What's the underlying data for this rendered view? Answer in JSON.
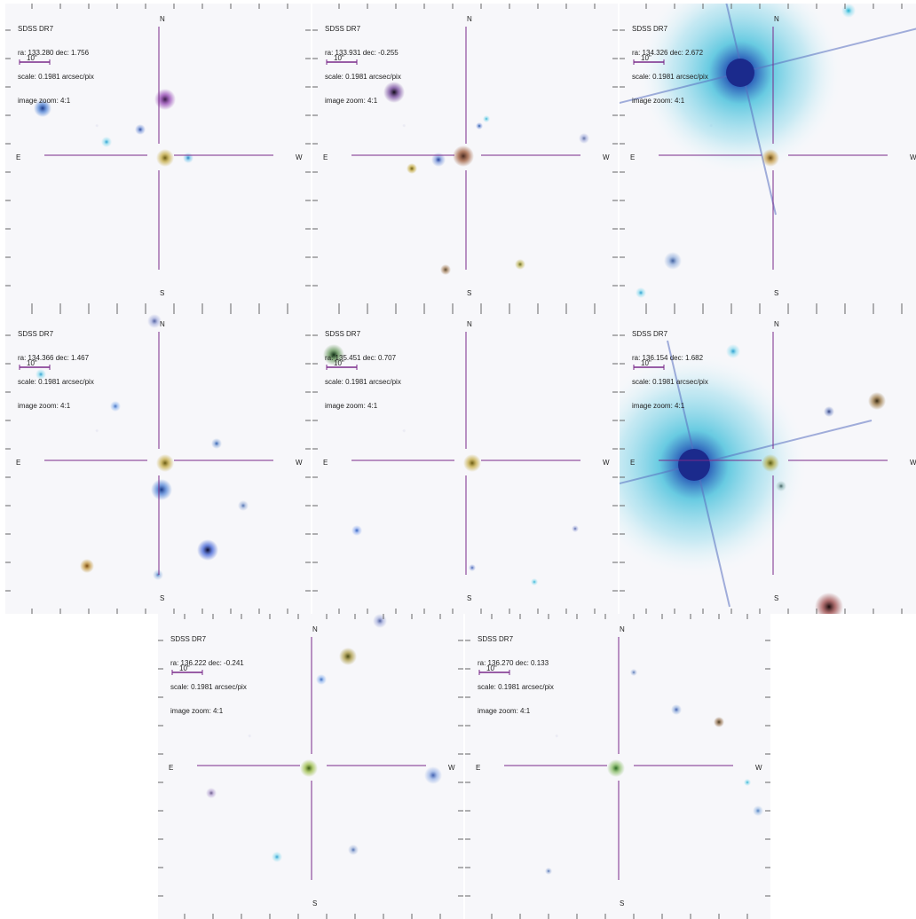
{
  "survey_label": "SDSS DR7",
  "scale_line": "scale: 0.1981 arcsec/pix",
  "zoom_line": "image zoom: 4:1",
  "scale_bar_label": "10\"",
  "compass": {
    "north": "N",
    "south": "S",
    "east": "E",
    "west": "W"
  },
  "colors": {
    "crosshair": "#7a2a8a",
    "background": "#f7f7fa",
    "bright_star_halo": "#4fc3dd",
    "bright_star_core": "#1b2a8c"
  },
  "panels": [
    {
      "coords": "ra: 133.280 dec: 1.756",
      "sources": [
        {
          "x": 180,
          "y": 108,
          "r": 6,
          "c": "#3a1a4a",
          "halo": "#9a50b8"
        },
        {
          "x": 42,
          "y": 118,
          "r": 5,
          "c": "#1a3a8a",
          "halo": "#5a8ad8"
        },
        {
          "x": 114,
          "y": 156,
          "r": 3,
          "c": "#2aa0d0",
          "halo": "#a0e0f0"
        },
        {
          "x": 152,
          "y": 142,
          "r": 3,
          "c": "#3050a0",
          "halo": "#90a8e0"
        },
        {
          "x": 206,
          "y": 174,
          "r": 3,
          "c": "#2080c0",
          "halo": "#90d0f0"
        },
        {
          "x": 180,
          "y": 174,
          "r": 5,
          "c": "#6a5a10",
          "halo": "#c8b050"
        }
      ]
    },
    {
      "coords": "ra: 133.931 dec: -0.255",
      "sources": [
        {
          "x": 92,
          "y": 100,
          "r": 6,
          "c": "#100a18",
          "halo": "#7a50a0"
        },
        {
          "x": 112,
          "y": 186,
          "r": 3,
          "c": "#6a5a10",
          "halo": "#c8b050"
        },
        {
          "x": 142,
          "y": 176,
          "r": 4,
          "c": "#2040a0",
          "halo": "#90a8e0"
        },
        {
          "x": 170,
          "y": 172,
          "r": 6,
          "c": "#4a2a20",
          "halo": "#a06040"
        },
        {
          "x": 188,
          "y": 138,
          "r": 2,
          "c": "#2050a0",
          "halo": "#90a8e0"
        },
        {
          "x": 196,
          "y": 130,
          "r": 2,
          "c": "#30b0d0",
          "halo": "#a0e0f0"
        },
        {
          "x": 150,
          "y": 300,
          "r": 3,
          "c": "#5a4a30",
          "halo": "#b09070"
        },
        {
          "x": 234,
          "y": 294,
          "r": 3,
          "c": "#6a6a20",
          "halo": "#c8c070"
        },
        {
          "x": 306,
          "y": 152,
          "r": 3,
          "c": "#6070a0",
          "halo": "#b0b8e0"
        }
      ]
    },
    {
      "coords": "ra: 134.326 dec: 2.672",
      "bright": {
        "x": 136,
        "y": 78,
        "r": 16,
        "halo": 118
      },
      "sources": [
        {
          "x": 170,
          "y": 174,
          "r": 5,
          "c": "#6a4a10",
          "halo": "#c8a050"
        },
        {
          "x": 60,
          "y": 290,
          "r": 5,
          "c": "#4060a0",
          "halo": "#a0b8e0"
        },
        {
          "x": 24,
          "y": 326,
          "r": 3,
          "c": "#2aa0d0",
          "halo": "#a0e0f0"
        },
        {
          "x": 258,
          "y": 8,
          "r": 4,
          "c": "#20b0d0",
          "halo": "#a0e0f0"
        }
      ]
    },
    {
      "coords": "ra: 134.366 dec: 1.467",
      "sources": [
        {
          "x": 180,
          "y": 174,
          "r": 5,
          "c": "#6a5a10",
          "halo": "#c8b050"
        },
        {
          "x": 176,
          "y": 204,
          "r": 6,
          "c": "#1a3a8a",
          "halo": "#5a8ad8"
        },
        {
          "x": 228,
          "y": 272,
          "r": 6,
          "c": "#0a0a30",
          "halo": "#4a6ad8"
        },
        {
          "x": 92,
          "y": 290,
          "r": 4,
          "c": "#7a4a10",
          "halo": "#c8a050"
        },
        {
          "x": 124,
          "y": 110,
          "r": 3,
          "c": "#4070c0",
          "halo": "#a0c0f0"
        },
        {
          "x": 238,
          "y": 152,
          "r": 3,
          "c": "#3060b0",
          "halo": "#a0b8e0"
        },
        {
          "x": 268,
          "y": 222,
          "r": 3,
          "c": "#5070b0",
          "halo": "#b0c0e0"
        },
        {
          "x": 172,
          "y": 300,
          "r": 3,
          "c": "#5080c0",
          "halo": "#b0c8e8"
        },
        {
          "x": 40,
          "y": 74,
          "r": 3,
          "c": "#30a0d0",
          "halo": "#a0e0f0"
        },
        {
          "x": 168,
          "y": 14,
          "r": 4,
          "c": "#5060a0",
          "halo": "#b0b8e0"
        }
      ]
    },
    {
      "coords": "ra: 135.451 dec: 0.707",
      "sources": [
        {
          "x": 24,
          "y": 52,
          "r": 6,
          "c": "#0a2a10",
          "halo": "#6a9a60"
        },
        {
          "x": 180,
          "y": 174,
          "r": 5,
          "c": "#6a5a10",
          "halo": "#c8b050"
        },
        {
          "x": 50,
          "y": 250,
          "r": 3,
          "c": "#3060c0",
          "halo": "#a0b8f0"
        },
        {
          "x": 180,
          "y": 292,
          "r": 2,
          "c": "#4060b0",
          "halo": "#a0b0e0"
        },
        {
          "x": 250,
          "y": 308,
          "r": 2,
          "c": "#30b0d0",
          "halo": "#a0e0f0"
        },
        {
          "x": 296,
          "y": 248,
          "r": 2,
          "c": "#5060a0",
          "halo": "#b0b8e0"
        }
      ]
    },
    {
      "coords": "ra: 136.154 dec: 1.682",
      "bright": {
        "x": 84,
        "y": 176,
        "r": 18,
        "halo": 130
      },
      "sources": [
        {
          "x": 170,
          "y": 174,
          "r": 5,
          "c": "#5a5a10",
          "halo": "#b8b050"
        },
        {
          "x": 290,
          "y": 104,
          "r": 5,
          "c": "#3a2a10",
          "halo": "#a08050"
        },
        {
          "x": 236,
          "y": 116,
          "r": 3,
          "c": "#304080",
          "halo": "#90a0d0"
        },
        {
          "x": 128,
          "y": 48,
          "r": 4,
          "c": "#2aa0d0",
          "halo": "#a0e0f0"
        },
        {
          "x": 236,
          "y": 336,
          "r": 8,
          "c": "#1a0a0a",
          "halo": "#a05050"
        },
        {
          "x": 182,
          "y": 200,
          "r": 3,
          "c": "#406060",
          "halo": "#a0c0c0"
        }
      ]
    },
    {
      "coords": "ra: 136.222 dec: -0.241",
      "sources": [
        {
          "x": 214,
          "y": 48,
          "r": 5,
          "c": "#4a4a10",
          "halo": "#b0a050"
        },
        {
          "x": 184,
          "y": 74,
          "r": 3,
          "c": "#4070c0",
          "halo": "#a0c0f0"
        },
        {
          "x": 170,
          "y": 174,
          "r": 5,
          "c": "#3a5a10",
          "halo": "#a0c050"
        },
        {
          "x": 310,
          "y": 182,
          "r": 5,
          "c": "#4060b0",
          "halo": "#a0b8e8"
        },
        {
          "x": 60,
          "y": 202,
          "r": 3,
          "c": "#6a5a8a",
          "halo": "#c0b0d8"
        },
        {
          "x": 220,
          "y": 266,
          "r": 3,
          "c": "#5070b0",
          "halo": "#b0c0e0"
        },
        {
          "x": 134,
          "y": 274,
          "r": 3,
          "c": "#30a0d0",
          "halo": "#a0e0f0"
        },
        {
          "x": 250,
          "y": 8,
          "r": 4,
          "c": "#5060a0",
          "halo": "#b0b8e0"
        }
      ]
    },
    {
      "coords": "ra: 136.270 dec: 0.133",
      "sources": [
        {
          "x": 170,
          "y": 174,
          "r": 5,
          "c": "#2a6a20",
          "halo": "#90c070"
        },
        {
          "x": 286,
          "y": 122,
          "r": 3,
          "c": "#4a3a20",
          "halo": "#a08060"
        },
        {
          "x": 238,
          "y": 108,
          "r": 3,
          "c": "#4060b0",
          "halo": "#a0b8e0"
        },
        {
          "x": 318,
          "y": 190,
          "r": 2,
          "c": "#30b0d0",
          "halo": "#a0e0f0"
        },
        {
          "x": 330,
          "y": 222,
          "r": 3,
          "c": "#5080c0",
          "halo": "#b0c8e8"
        },
        {
          "x": 190,
          "y": 66,
          "r": 2,
          "c": "#5070b0",
          "halo": "#b0c0e0"
        },
        {
          "x": 94,
          "y": 290,
          "r": 2,
          "c": "#5070b0",
          "halo": "#b0c0e0"
        }
      ]
    }
  ]
}
